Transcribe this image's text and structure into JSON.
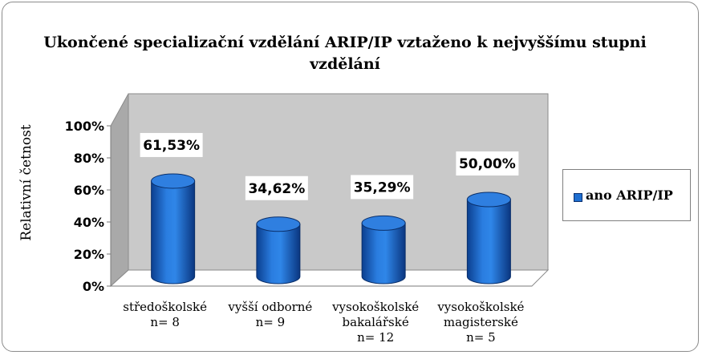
{
  "chart_data": {
    "type": "bar",
    "title": "Ukončené specializační vzdělání ARIP/IP vztaženo k nejvyššímu stupni vzdělání",
    "ylabel": "Relativní četnost",
    "xlabel": "",
    "ylim": [
      0,
      100
    ],
    "yticks": [
      "0%",
      "20%",
      "40%",
      "60%",
      "80%",
      "100%"
    ],
    "ytick_values": [
      0,
      20,
      40,
      60,
      80,
      100
    ],
    "categories": [
      [
        "středoškolské",
        "n= 8"
      ],
      [
        "vyšší odborné",
        "n= 9"
      ],
      [
        "vysokoškolské",
        "bakalářské",
        "n= 12"
      ],
      [
        "vysokoškolské",
        "magisterské",
        "n= 5"
      ]
    ],
    "series": [
      {
        "name": "ano ARIP/IP",
        "values": [
          61.53,
          34.62,
          35.29,
          50.0
        ],
        "labels": [
          "61,53%",
          "34,62%",
          "35,29%",
          "50,00%"
        ]
      }
    ],
    "legend": "right",
    "grid": false,
    "style": "3d-cylinder",
    "colors": {
      "bar": "#1f6fd1",
      "bar_dark": "#0b3f8f",
      "bar_top": "#2f7fe0",
      "wall": "#c9c9c9",
      "wall_side": "#a9a9a9",
      "floor": "#ffffff"
    }
  }
}
